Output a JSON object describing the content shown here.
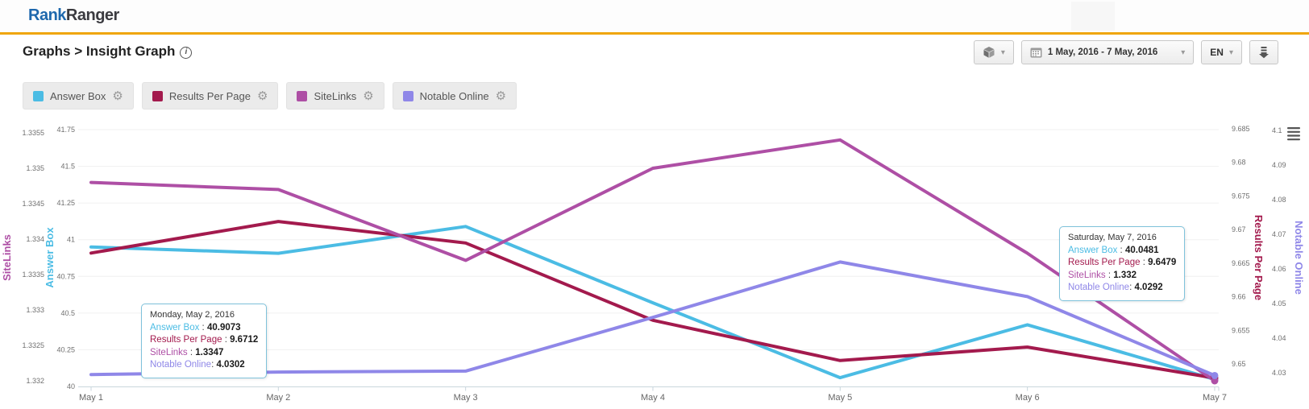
{
  "header": {
    "logo_part1": "Rank",
    "logo_part2": "Ranger",
    "breadcrumb": "Graphs > Insight Graph",
    "controls": {
      "date_range": "1 May, 2016 - 7 May, 2016",
      "language": "EN"
    }
  },
  "glyphs": {
    "caret": "▾",
    "gear": "⚙",
    "info": "i"
  },
  "legend": [
    {
      "label": "Answer Box",
      "color": "#4BBCE4"
    },
    {
      "label": "Results Per Page",
      "color": "#A31A4D"
    },
    {
      "label": "SiteLinks",
      "color": "#AE4FA5"
    },
    {
      "label": "Notable Online",
      "color": "#8F87E8"
    }
  ],
  "chart_data": {
    "type": "line",
    "x_labels": [
      "May 1",
      "May 2",
      "May 3",
      "May 4",
      "May 5",
      "May 6",
      "May 7"
    ],
    "grid": "horizontal",
    "axes": {
      "sitelinks": {
        "title": "SiteLinks",
        "side": "left",
        "color": "#AE4FA5",
        "min": 1.332,
        "max": 1.3355,
        "ticks": [
          "1.3355",
          "1.335",
          "1.3345",
          "1.334",
          "1.3335",
          "1.333",
          "1.3325",
          "1.332"
        ]
      },
      "answer_box": {
        "title": "Answer Box",
        "side": "left",
        "color": "#4BBCE4",
        "min": 40,
        "max": 41.75,
        "ticks": [
          "41.75",
          "41.5",
          "41.25",
          "41",
          "40.75",
          "40.5",
          "40.25",
          "40"
        ]
      },
      "results_per_page": {
        "title": "Results Per Page",
        "side": "right",
        "color": "#A31A4D",
        "min": 9.65,
        "max": 9.685,
        "ticks": [
          "9.685",
          "9.68",
          "9.675",
          "9.67",
          "9.665",
          "9.66",
          "9.655",
          "9.65"
        ]
      },
      "notable_online": {
        "title": "Notable Online",
        "side": "right",
        "color": "#8F87E8",
        "min": 4.03,
        "max": 4.1,
        "ticks": [
          "4.1",
          "4.09",
          "4.08",
          "4.07",
          "4.06",
          "4.05",
          "4.04",
          "4.03"
        ]
      }
    },
    "series": [
      {
        "name": "Answer Box",
        "axis": "answer_box",
        "color": "#4BBCE4",
        "values": [
          40.95,
          40.9073,
          41.09,
          40.57,
          40.06,
          40.42,
          40.0481
        ]
      },
      {
        "name": "Results Per Page",
        "axis": "results_per_page",
        "color": "#A31A4D",
        "values": [
          9.6665,
          9.6712,
          9.668,
          9.6565,
          9.6505,
          9.6525,
          9.6479
        ]
      },
      {
        "name": "SiteLinks",
        "axis": "sitelinks",
        "color": "#AE4FA5",
        "values": [
          1.3348,
          1.3347,
          1.3337,
          1.335,
          1.3354,
          1.3338,
          1.332
        ]
      },
      {
        "name": "Notable Online",
        "axis": "notable_online",
        "color": "#8F87E8",
        "values": [
          4.0295,
          4.0302,
          4.0305,
          4.046,
          4.062,
          4.052,
          4.0292
        ]
      }
    ]
  },
  "tooltips": [
    {
      "date": "Monday, May 2, 2016",
      "rows": [
        {
          "label": "Answer Box",
          "sep": " : ",
          "value": "40.9073"
        },
        {
          "label": "Results Per Page",
          "sep": " : ",
          "value": "9.6712"
        },
        {
          "label": "SiteLinks",
          "sep": " : ",
          "value": "1.3347"
        },
        {
          "label": "Notable Online",
          "sep": ": ",
          "value": "4.0302"
        }
      ]
    },
    {
      "date": "Saturday, May 7, 2016",
      "rows": [
        {
          "label": "Answer Box",
          "sep": " : ",
          "value": "40.0481"
        },
        {
          "label": "Results Per Page",
          "sep": " : ",
          "value": "9.6479"
        },
        {
          "label": "SiteLinks",
          "sep": " : ",
          "value": "1.332"
        },
        {
          "label": "Notable Online",
          "sep": ": ",
          "value": "4.0292"
        }
      ]
    }
  ]
}
